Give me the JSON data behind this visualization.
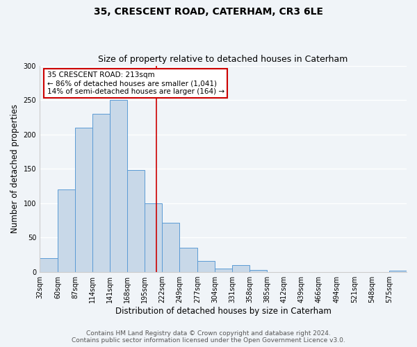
{
  "title": "35, CRESCENT ROAD, CATERHAM, CR3 6LE",
  "subtitle": "Size of property relative to detached houses in Caterham",
  "xlabel": "Distribution of detached houses by size in Caterham",
  "ylabel": "Number of detached properties",
  "bar_labels": [
    "32sqm",
    "60sqm",
    "87sqm",
    "114sqm",
    "141sqm",
    "168sqm",
    "195sqm",
    "222sqm",
    "249sqm",
    "277sqm",
    "304sqm",
    "331sqm",
    "358sqm",
    "385sqm",
    "412sqm",
    "439sqm",
    "466sqm",
    "494sqm",
    "521sqm",
    "548sqm",
    "575sqm"
  ],
  "bin_edges": [
    32,
    60,
    87,
    114,
    141,
    168,
    195,
    222,
    249,
    277,
    304,
    331,
    358,
    385,
    412,
    439,
    466,
    494,
    521,
    548,
    575,
    602
  ],
  "bar_heights": [
    20,
    120,
    210,
    230,
    250,
    148,
    100,
    72,
    35,
    16,
    5,
    10,
    3,
    0,
    0,
    0,
    0,
    0,
    0,
    0,
    2
  ],
  "bar_color": "#c8d8e8",
  "bar_edge_color": "#5b9bd5",
  "vline_x": 213,
  "vline_color": "#cc0000",
  "ylim": [
    0,
    300
  ],
  "yticks": [
    0,
    50,
    100,
    150,
    200,
    250,
    300
  ],
  "annotation_title": "35 CRESCENT ROAD: 213sqm",
  "annotation_line1": "← 86% of detached houses are smaller (1,041)",
  "annotation_line2": "14% of semi-detached houses are larger (164) →",
  "annotation_box_color": "#ffffff",
  "annotation_box_edge": "#cc0000",
  "footer1": "Contains HM Land Registry data © Crown copyright and database right 2024.",
  "footer2": "Contains public sector information licensed under the Open Government Licence v3.0.",
  "background_color": "#f0f4f8",
  "plot_background": "#f0f4f8",
  "grid_color": "#ffffff",
  "title_fontsize": 10,
  "subtitle_fontsize": 9,
  "axis_label_fontsize": 8.5,
  "tick_fontsize": 7,
  "footer_fontsize": 6.5,
  "annot_fontsize": 7.5
}
